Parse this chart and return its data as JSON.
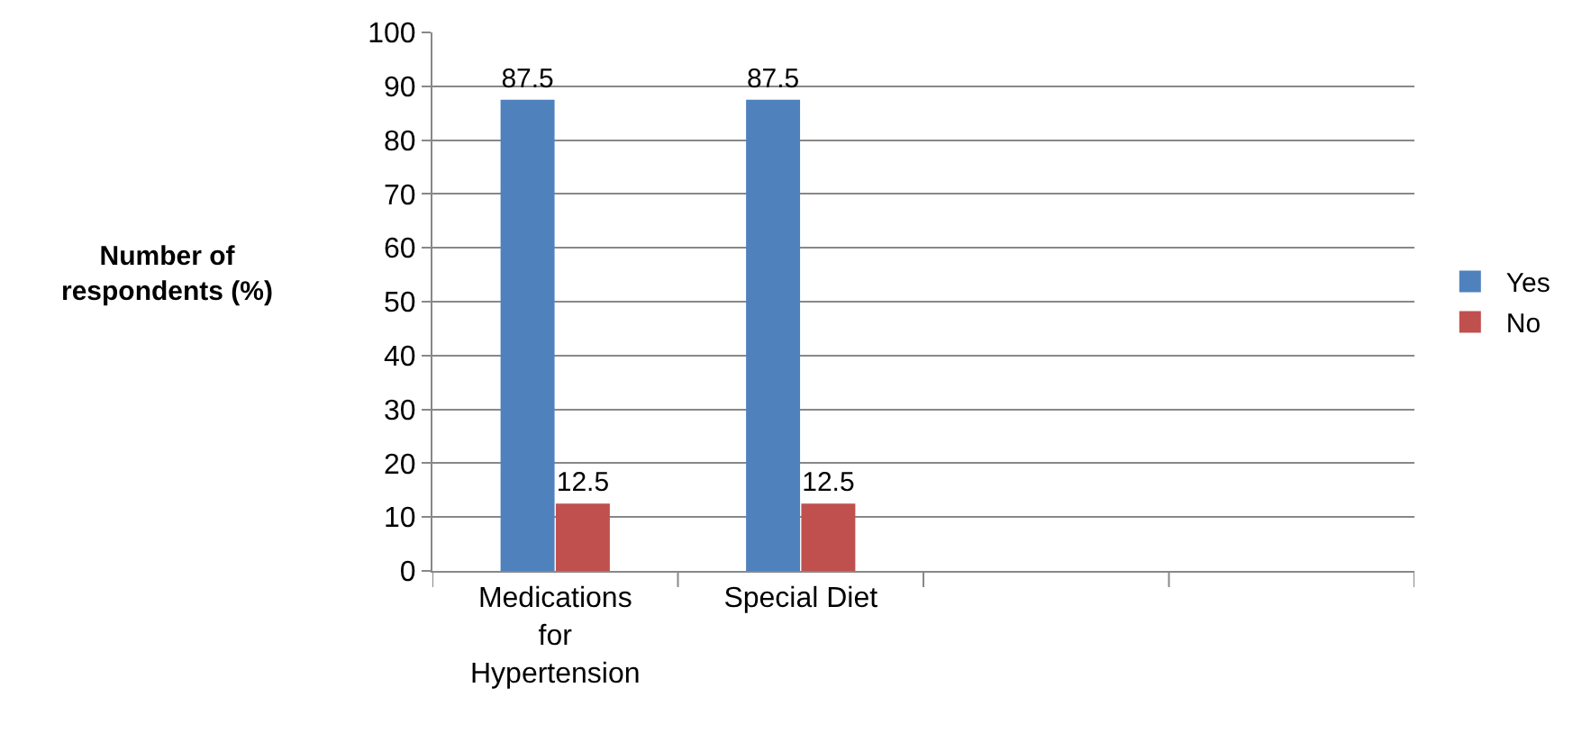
{
  "chart_data": {
    "type": "bar",
    "ylabel": "Number of respondents (%)",
    "categories": [
      "Medications for Hypertension",
      "Special Diet",
      null,
      null
    ],
    "series": [
      {
        "name": "Yes",
        "color": "#4f81bd",
        "values": [
          87.5,
          87.5,
          null,
          null
        ]
      },
      {
        "name": "No",
        "color": "#c0504d",
        "values": [
          12.5,
          12.5,
          null,
          null
        ]
      }
    ],
    "ylim": [
      0,
      100
    ],
    "yticks": [
      0,
      10,
      20,
      30,
      40,
      50,
      60,
      70,
      80,
      90,
      100
    ],
    "grid": "y",
    "legend": "right",
    "data_labels": true
  }
}
